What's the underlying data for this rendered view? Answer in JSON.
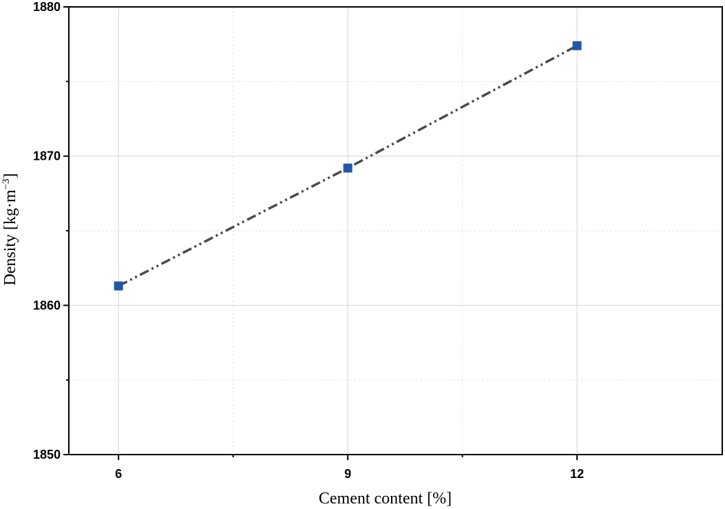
{
  "chart_data": {
    "type": "line",
    "title": "",
    "xlabel": "Cement content [%]",
    "ylabel": {
      "text": "Density [kg·m",
      "sup": "−3",
      "close": "]"
    },
    "xlim": [
      5.35,
      13.9
    ],
    "ylim": [
      1850,
      1880
    ],
    "xticks": [
      6,
      9,
      12
    ],
    "xminor": [
      7.5,
      10.5
    ],
    "yticks": [
      1850,
      1860,
      1870,
      1880
    ],
    "yminor": [
      1855,
      1865,
      1875
    ],
    "grid": true,
    "series": [
      {
        "marker": "square",
        "line_style": "dash-dot-dot",
        "marker_color": "#2356A8",
        "line_color": "#4a4a4a",
        "x": [
          6,
          9,
          12
        ],
        "y": [
          1861.3,
          1869.2,
          1877.4
        ]
      }
    ]
  }
}
